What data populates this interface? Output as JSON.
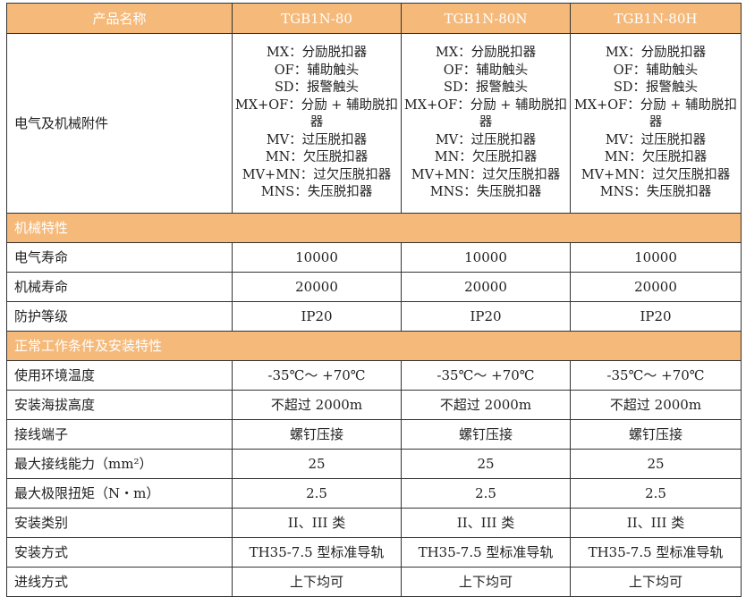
{
  "header": {
    "label": "产品名称",
    "models": [
      "TGB1N-80",
      "TGB1N-80N",
      "TGB1N-80H"
    ]
  },
  "accessories": {
    "label": "电气及机械附件",
    "items": [
      "MX：分励脱扣器",
      "OF：辅助触头",
      "SD：报警触头",
      "MX+OF：分励 + 辅助脱扣器",
      "MV：过压脱扣器",
      "MN：欠压脱扣器",
      "MV+MN：过欠压脱扣器",
      "MNS：失压脱扣器"
    ]
  },
  "sections": [
    {
      "title": "机械特性",
      "rows": [
        {
          "label": "电气寿命",
          "values": [
            "10000",
            "10000",
            "10000"
          ]
        },
        {
          "label": "机械寿命",
          "values": [
            "20000",
            "20000",
            "20000"
          ]
        },
        {
          "label": "防护等级",
          "values": [
            "IP20",
            "IP20",
            "IP20"
          ]
        }
      ]
    },
    {
      "title": "正常工作条件及安装特性",
      "rows": [
        {
          "label": "使用环境温度",
          "values": [
            "-35℃～ +70℃",
            "-35℃～ +70℃",
            "-35℃～ +70℃"
          ]
        },
        {
          "label": "安装海拔高度",
          "values": [
            "不超过 2000m",
            "不超过 2000m",
            "不超过 2000m"
          ]
        },
        {
          "label": "接线端子",
          "values": [
            "螺钉压接",
            "螺钉压接",
            "螺钉压接"
          ]
        },
        {
          "label": "最大接线能力（mm²）",
          "values": [
            "25",
            "25",
            "25"
          ]
        },
        {
          "label": "最大极限扭矩（N・m）",
          "values": [
            "2.5",
            "2.5",
            "2.5"
          ]
        },
        {
          "label": "安装类别",
          "values": [
            "II、III 类",
            "II、III 类",
            "II、III 类"
          ]
        },
        {
          "label": "安装方式",
          "values": [
            "TH35-7.5 型标准导轨",
            "TH35-7.5 型标准导轨",
            "TH35-7.5 型标准导轨"
          ]
        },
        {
          "label": "进线方式",
          "values": [
            "上下均可",
            "上下均可",
            "上下均可"
          ]
        }
      ]
    }
  ],
  "colors": {
    "header_bg": "#f5b97a",
    "header_text": "#ffffff"
  }
}
